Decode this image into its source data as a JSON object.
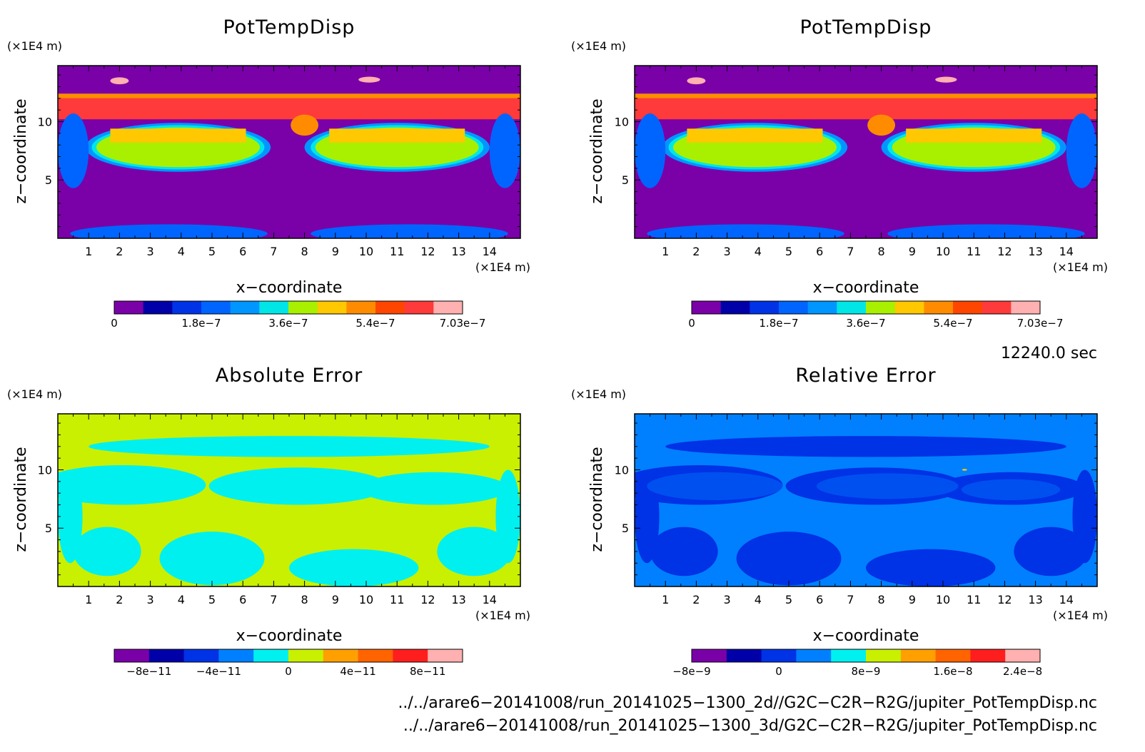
{
  "chart_data": [
    {
      "type": "heatmap",
      "title": "PotTempDisp",
      "xlabel": "x−coordinate",
      "ylabel": "z−coordinate",
      "x_unit": "(×1E4 m)",
      "y_unit": "(×1E4 m)",
      "xlim": [
        0,
        15
      ],
      "ylim": [
        0,
        14.8
      ],
      "x_ticks": [
        "1",
        "2",
        "3",
        "4",
        "5",
        "6",
        "7",
        "8",
        "9",
        "10",
        "11",
        "12",
        "13",
        "14"
      ],
      "y_ticks": [
        "5",
        "10"
      ],
      "colorbar": {
        "levels": 12,
        "colors": [
          "#7a00a8",
          "#0000a8",
          "#0032e6",
          "#0064ff",
          "#0096ff",
          "#00e6e6",
          "#a8f000",
          "#ffc800",
          "#ff8c00",
          "#ff4600",
          "#ff3a3a",
          "#ffb0b0"
        ],
        "labels": [
          "0",
          "1.8e−7",
          "3.6e−7",
          "5.4e−7",
          "7.03e−7"
        ]
      },
      "style": "field"
    },
    {
      "type": "heatmap",
      "title": "PotTempDisp",
      "xlabel": "x−coordinate",
      "ylabel": "z−coordinate",
      "x_unit": "(×1E4 m)",
      "y_unit": "(×1E4 m)",
      "xlim": [
        0,
        15
      ],
      "ylim": [
        0,
        14.8
      ],
      "x_ticks": [
        "1",
        "2",
        "3",
        "4",
        "5",
        "6",
        "7",
        "8",
        "9",
        "10",
        "11",
        "12",
        "13",
        "14"
      ],
      "y_ticks": [
        "5",
        "10"
      ],
      "colorbar": {
        "levels": 12,
        "colors": [
          "#7a00a8",
          "#0000a8",
          "#0032e6",
          "#0064ff",
          "#0096ff",
          "#00e6e6",
          "#a8f000",
          "#ffc800",
          "#ff8c00",
          "#ff4600",
          "#ff3a3a",
          "#ffb0b0"
        ],
        "labels": [
          "0",
          "1.8e−7",
          "3.6e−7",
          "5.4e−7",
          "7.03e−7"
        ]
      },
      "style": "field"
    },
    {
      "type": "heatmap",
      "title": "Absolute Error",
      "xlabel": "x−coordinate",
      "ylabel": "z−coordinate",
      "x_unit": "(×1E4 m)",
      "y_unit": "(×1E4 m)",
      "xlim": [
        0,
        15
      ],
      "ylim": [
        0,
        14.8
      ],
      "x_ticks": [
        "1",
        "2",
        "3",
        "4",
        "5",
        "6",
        "7",
        "8",
        "9",
        "10",
        "11",
        "12",
        "13",
        "14"
      ],
      "y_ticks": [
        "5",
        "10"
      ],
      "colorbar": {
        "levels": 10,
        "colors": [
          "#7a00a8",
          "#0000a8",
          "#0032e6",
          "#0080ff",
          "#00f0f0",
          "#c8f000",
          "#ffa000",
          "#ff6400",
          "#ff1e1e",
          "#ffb0b0"
        ],
        "labels": [
          "−8e−11",
          "−4e−11",
          "0",
          "4e−11",
          "8e−11"
        ]
      },
      "style": "abs",
      "background_color": "#c8f000",
      "patch_color": "#00f0f0"
    },
    {
      "type": "heatmap",
      "title": "Relative Error",
      "xlabel": "x−coordinate",
      "ylabel": "z−coordinate",
      "x_unit": "(×1E4 m)",
      "y_unit": "(×1E4 m)",
      "xlim": [
        0,
        15
      ],
      "ylim": [
        0,
        14.8
      ],
      "x_ticks": [
        "1",
        "2",
        "3",
        "4",
        "5",
        "6",
        "7",
        "8",
        "9",
        "10",
        "11",
        "12",
        "13",
        "14"
      ],
      "y_ticks": [
        "5",
        "10"
      ],
      "colorbar": {
        "levels": 10,
        "colors": [
          "#7a00a8",
          "#0000a8",
          "#0032e6",
          "#0080ff",
          "#00f0f0",
          "#c8f000",
          "#ffa000",
          "#ff6400",
          "#ff1e1e",
          "#ffb0b0"
        ],
        "labels": [
          "−8e−9",
          "0",
          "8e−9",
          "1.6e−8",
          "2.4e−8"
        ]
      },
      "style": "rel",
      "background_color": "#0080ff",
      "patch_color": "#0032e6"
    }
  ],
  "info": {
    "time": "12240.0 sec",
    "path_2d": "../../arare6−20141008/run_20141025−1300_2d//G2C−C2R−R2G/jupiter_PotTempDisp.nc",
    "path_3d": "../../arare6−20141008/run_20141025−1300_3d/G2C−C2R−R2G/jupiter_PotTempDisp.nc"
  }
}
